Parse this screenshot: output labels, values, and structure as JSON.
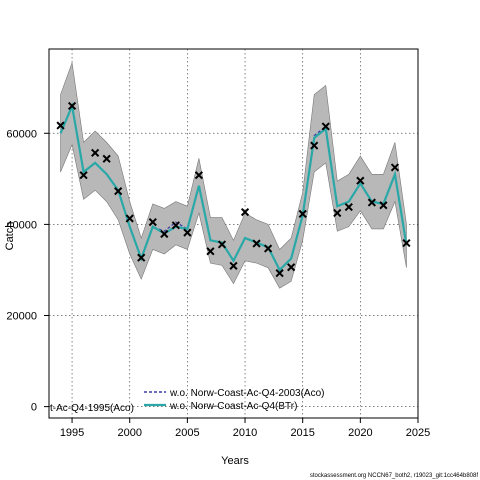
{
  "chart_data": {
    "type": "line",
    "title": "",
    "xlabel": "Years",
    "ylabel": "Catch",
    "xlim": [
      1993,
      2025
    ],
    "ylim": [
      -2500,
      78500
    ],
    "x_ticks": [
      1995,
      2000,
      2005,
      2010,
      2015,
      2020,
      2025
    ],
    "y_ticks": [
      0,
      20000,
      40000,
      60000
    ],
    "x_tick_labels": [
      "1995",
      "2000",
      "2005",
      "2010",
      "2015",
      "2020",
      "2025"
    ],
    "y_tick_labels": [
      "0",
      "20000",
      "40000",
      "60000"
    ],
    "grid": true,
    "legend_placement": "bottom-left",
    "x": [
      1994,
      1995,
      1996,
      1997,
      1998,
      1999,
      2000,
      2001,
      2002,
      2003,
      2004,
      2005,
      2006,
      2007,
      2008,
      2009,
      2010,
      2011,
      2012,
      2013,
      2014,
      2015,
      2016,
      2017,
      2018,
      2019,
      2020,
      2021,
      2022,
      2023,
      2024
    ],
    "band": {
      "upper": [
        68500,
        75500,
        58000,
        60500,
        58000,
        55000,
        45000,
        37000,
        44500,
        43500,
        45000,
        44000,
        54500,
        41500,
        41500,
        36500,
        42500,
        41000,
        40000,
        34500,
        37000,
        47000,
        68500,
        70500,
        49500,
        51000,
        55000,
        51000,
        51000,
        58000,
        40000
      ],
      "lower": [
        51500,
        57500,
        45500,
        47500,
        45000,
        41000,
        33500,
        28000,
        34500,
        33500,
        35500,
        34500,
        42500,
        31500,
        31000,
        27000,
        32000,
        31500,
        30500,
        26000,
        27500,
        36500,
        51500,
        53500,
        38500,
        39500,
        43000,
        39000,
        39000,
        45000,
        30500
      ]
    },
    "series": [
      {
        "name": "w.o. Norw-Coast-Ac-Q4-2003(Aco)",
        "color": "#3a3aaa",
        "style": "dashed",
        "values": [
          60000,
          66000,
          51500,
          53500,
          51000,
          47500,
          39500,
          32500,
          39500,
          38500,
          40500,
          39000,
          48500,
          36500,
          36000,
          32000,
          37000,
          36000,
          35000,
          30000,
          32500,
          42000,
          59500,
          61500,
          44000,
          45000,
          49000,
          45000,
          44500,
          51000,
          35500
        ]
      },
      {
        "name": "w.o. Norw-Coast-Ac-Q4(BTr)",
        "color": "#2aa8a8",
        "style": "solid",
        "values": [
          60000,
          66000,
          51500,
          53500,
          51000,
          47500,
          39500,
          32500,
          39500,
          38000,
          39500,
          39000,
          48500,
          36500,
          36000,
          32000,
          37000,
          36000,
          35000,
          30000,
          32500,
          42000,
          59000,
          61000,
          44000,
          45000,
          49000,
          45000,
          44500,
          51000,
          35500
        ]
      },
      {
        "name": "",
        "color": "#000000",
        "style": "points",
        "values": [
          61700,
          66000,
          50800,
          55700,
          54400,
          47300,
          41300,
          32700,
          40500,
          37900,
          39800,
          38200,
          50800,
          34100,
          35600,
          30900,
          42700,
          35800,
          34700,
          29300,
          30600,
          42300,
          57300,
          61500,
          42500,
          43800,
          49600,
          44800,
          44200,
          52500,
          35900
        ]
      }
    ],
    "legend_items": [
      {
        "label": "t-Ac-Q4-1995(Aco)"
      },
      {
        "label": "w.o. Norw-Coast-Ac-Q4-2003(Aco)"
      },
      {
        "label": "w.o. Norw-Coast-Ac-Q4(BTr)"
      }
    ]
  },
  "credit": "stockassessment.org NCCN67_both2, r19023_git:1cc464b808f"
}
